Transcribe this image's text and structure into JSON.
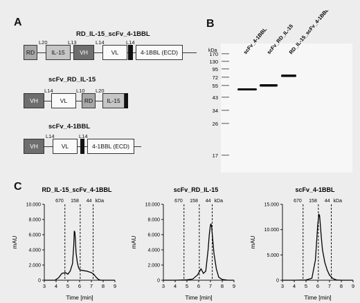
{
  "panel_a": {
    "label": "A",
    "constructs": [
      {
        "name": "RD_IL-15_scFv_4-1BBL",
        "domains": [
          "RD",
          "IL-15",
          "VH",
          "VL",
          "",
          "4-1BBL (ECD)"
        ],
        "linkers": [
          "L20",
          "L13",
          "L14",
          "L14"
        ]
      },
      {
        "name": "scFv_RD_IL-15",
        "domains": [
          "VH",
          "VL",
          "RD",
          "IL-15",
          ""
        ],
        "linkers": [
          "L14",
          "L10",
          "L20"
        ]
      },
      {
        "name": "scFv_4-1BBL",
        "domains": [
          "VH",
          "VL",
          "",
          "4-1BBL (ECD)"
        ],
        "linkers": [
          "L14",
          "L14"
        ]
      }
    ]
  },
  "panel_b": {
    "label": "B",
    "kda_label": "kDa",
    "markers": [
      "170",
      "130",
      "95",
      "72",
      "55",
      "43",
      "34",
      "26",
      "17"
    ],
    "lanes": [
      "scFv_4-1BBL",
      "scFv_RD_IL-15",
      "RD_IL-15_scFv_4-1BBL"
    ]
  },
  "panel_c": {
    "label": "C",
    "x_label": "Time [min]",
    "y_label": "mAU",
    "standards_label": "kDa",
    "chart_data": [
      {
        "type": "line",
        "title": "RD_IL-15_scFv_4-1BBL",
        "xlabel": "Time [min]",
        "ylabel": "mAU",
        "xlim": [
          3,
          9
        ],
        "ylim": [
          0,
          10000
        ],
        "x_ticks": [
          "3",
          "4",
          "5",
          "6",
          "7",
          "8",
          "9"
        ],
        "y_ticks": [
          "0",
          "2.000",
          "4.000",
          "6.000",
          "8.000",
          "10.000"
        ],
        "standards": [
          {
            "label": "670",
            "x": 4.75
          },
          {
            "label": "158",
            "x": 6.05
          },
          {
            "label": "44",
            "x": 7.15
          }
        ],
        "x": [
          3.0,
          3.5,
          3.9,
          4.2,
          4.5,
          4.8,
          5.0,
          5.2,
          5.4,
          5.5,
          5.55,
          5.6,
          5.65,
          5.7,
          5.8,
          5.9,
          6.0,
          6.2,
          6.4,
          6.6,
          6.8,
          7.0,
          7.2,
          7.4,
          7.6,
          7.8,
          8.0,
          8.5,
          9.0
        ],
        "y": [
          0,
          0,
          0,
          300,
          900,
          1000,
          800,
          1200,
          2200,
          4500,
          6500,
          6300,
          5000,
          3600,
          2400,
          1700,
          1400,
          1300,
          1250,
          1200,
          1100,
          1000,
          800,
          400,
          100,
          0,
          0,
          0,
          0
        ]
      },
      {
        "type": "line",
        "title": "scFv_RD_IL-15",
        "xlabel": "Time [min]",
        "ylabel": "mAU",
        "xlim": [
          3,
          9
        ],
        "ylim": [
          0,
          10000
        ],
        "x_ticks": [
          "3",
          "4",
          "5",
          "6",
          "7",
          "8",
          "9"
        ],
        "y_ticks": [
          "0",
          "2.000",
          "4.000",
          "6.000",
          "8.000",
          "10.000"
        ],
        "standards": [
          {
            "label": "670",
            "x": 4.75
          },
          {
            "label": "158",
            "x": 6.05
          },
          {
            "label": "44",
            "x": 7.15
          }
        ],
        "x": [
          3.0,
          4.0,
          5.0,
          5.5,
          5.9,
          6.2,
          6.4,
          6.6,
          6.8,
          6.9,
          7.0,
          7.05,
          7.1,
          7.2,
          7.3,
          7.5,
          7.7,
          8.0,
          8.5,
          9.0
        ],
        "y": [
          0,
          0,
          50,
          150,
          700,
          1500,
          900,
          1200,
          4000,
          6000,
          7300,
          7400,
          7000,
          5200,
          3500,
          1500,
          400,
          100,
          0,
          0
        ]
      },
      {
        "type": "line",
        "title": "scFv_4-1BBL",
        "xlabel": "Time [min]",
        "ylabel": "mAU",
        "xlim": [
          3,
          9
        ],
        "ylim": [
          0,
          15000
        ],
        "x_ticks": [
          "3",
          "4",
          "5",
          "6",
          "7",
          "8",
          "9"
        ],
        "y_ticks": [
          "0",
          "5.000",
          "10.000",
          "15.000"
        ],
        "standards": [
          {
            "label": "670",
            "x": 4.75
          },
          {
            "label": "158",
            "x": 6.05
          },
          {
            "label": "44",
            "x": 7.15
          }
        ],
        "x": [
          3.0,
          4.0,
          5.0,
          5.5,
          5.8,
          6.0,
          6.1,
          6.15,
          6.2,
          6.3,
          6.4,
          6.6,
          6.8,
          7.0,
          7.3,
          7.6,
          8.0,
          9.0
        ],
        "y": [
          0,
          0,
          50,
          400,
          4000,
          11000,
          13000,
          12800,
          11500,
          8500,
          6000,
          3500,
          2000,
          1000,
          300,
          50,
          0,
          0
        ]
      }
    ]
  }
}
